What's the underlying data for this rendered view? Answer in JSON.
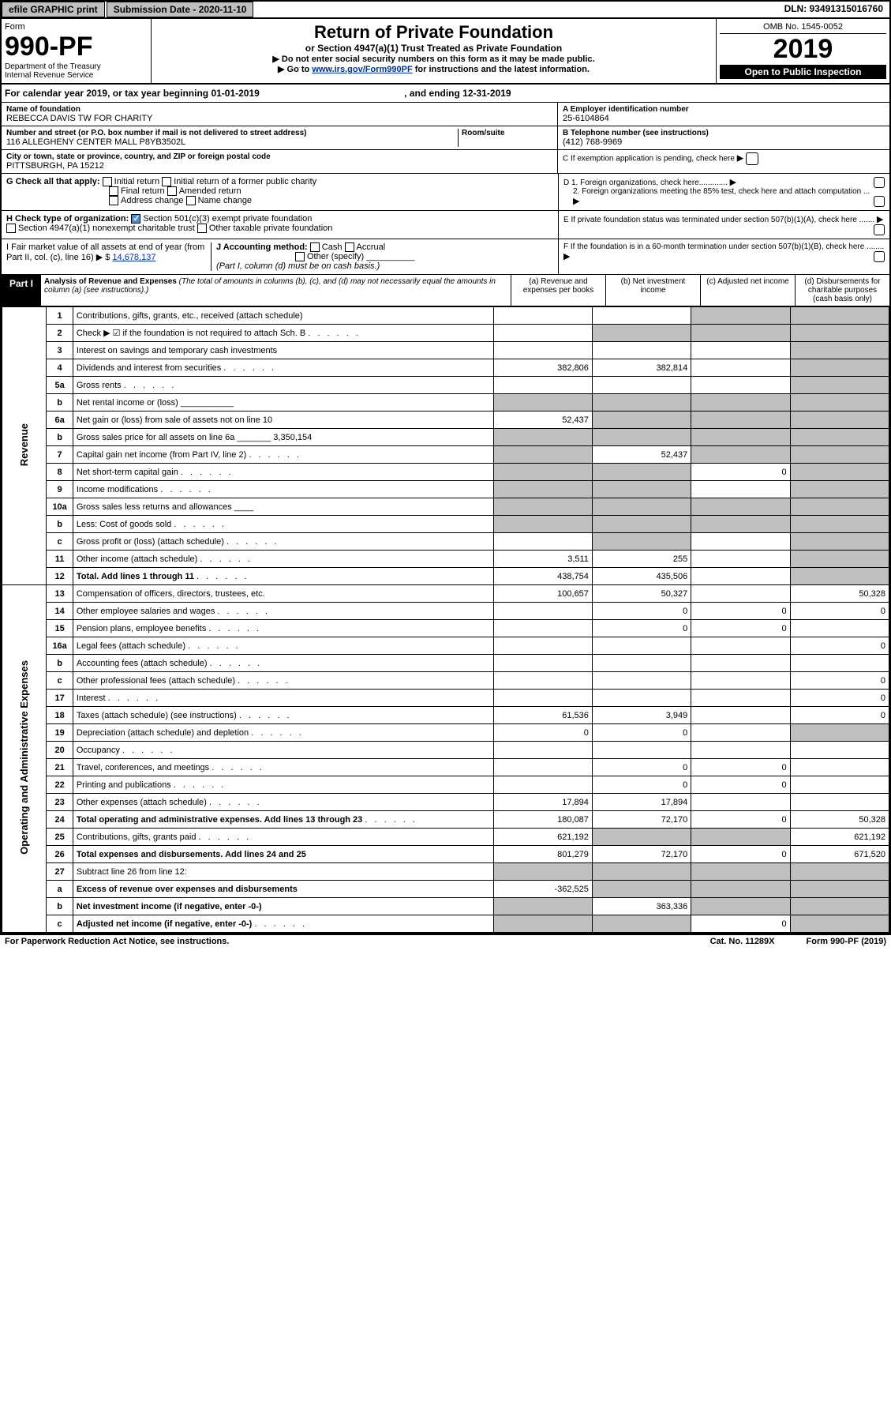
{
  "topbar": {
    "efile": "efile GRAPHIC print",
    "submission": "Submission Date - 2020-11-10",
    "dln": "DLN: 93491315016760"
  },
  "header": {
    "form_label": "Form",
    "form_name": "990-PF",
    "dept": "Department of the Treasury",
    "irs": "Internal Revenue Service",
    "title": "Return of Private Foundation",
    "subtitle": "or Section 4947(a)(1) Trust Treated as Private Foundation",
    "note1": "▶ Do not enter social security numbers on this form as it may be made public.",
    "note2_pre": "▶ Go to ",
    "note2_link": "www.irs.gov/Form990PF",
    "note2_post": " for instructions and the latest information.",
    "omb": "OMB No. 1545-0052",
    "year": "2019",
    "open": "Open to Public Inspection"
  },
  "calendar": {
    "text": "For calendar year 2019, or tax year beginning 01-01-2019",
    "ending": ", and ending 12-31-2019"
  },
  "identity": {
    "name_label": "Name of foundation",
    "name": "REBECCA DAVIS TW FOR CHARITY",
    "addr_label": "Number and street (or P.O. box number if mail is not delivered to street address)",
    "addr": "116 ALLEGHENY CENTER MALL P8YB3502L",
    "room_label": "Room/suite",
    "city_label": "City or town, state or province, country, and ZIP or foreign postal code",
    "city": "PITTSBURGH, PA  15212",
    "ein_label": "A Employer identification number",
    "ein": "25-6104864",
    "phone_label": "B Telephone number (see instructions)",
    "phone": "(412) 768-9969",
    "c_label": "C If exemption application is pending, check here",
    "d1": "D 1. Foreign organizations, check here.............",
    "d2": "2. Foreign organizations meeting the 85% test, check here and attach computation ...",
    "e": "E If private foundation status was terminated under section 507(b)(1)(A), check here .......",
    "f": "F If the foundation is in a 60-month termination under section 507(b)(1)(B), check here ........"
  },
  "checkG": {
    "label": "G Check all that apply:",
    "initial": "Initial return",
    "initial_former": "Initial return of a former public charity",
    "final": "Final return",
    "amended": "Amended return",
    "address": "Address change",
    "name": "Name change"
  },
  "checkH": {
    "label": "H Check type of organization:",
    "c3": "Section 501(c)(3) exempt private foundation",
    "trust": "Section 4947(a)(1) nonexempt charitable trust",
    "other": "Other taxable private foundation"
  },
  "sectionI": {
    "label": "I Fair market value of all assets at end of year (from Part II, col. (c), line 16) ▶ $",
    "value": "14,678,137"
  },
  "sectionJ": {
    "label": "J Accounting method:",
    "cash": "Cash",
    "accrual": "Accrual",
    "other": "Other (specify)",
    "note": "(Part I, column (d) must be on cash basis.)"
  },
  "partI": {
    "label": "Part I",
    "title": "Analysis of Revenue and Expenses",
    "title_note": "(The total of amounts in columns (b), (c), and (d) may not necessarily equal the amounts in column (a) (see instructions).)",
    "col_a": "(a) Revenue and expenses per books",
    "col_b": "(b) Net investment income",
    "col_c": "(c) Adjusted net income",
    "col_d": "(d) Disbursements for charitable purposes (cash basis only)"
  },
  "side_labels": {
    "revenue": "Revenue",
    "expenses": "Operating and Administrative Expenses"
  },
  "rows": [
    {
      "n": "1",
      "desc": "Contributions, gifts, grants, etc., received (attach schedule)",
      "a": "",
      "b": "",
      "c": "sh",
      "d": "sh"
    },
    {
      "n": "2",
      "desc": "Check ▶ ☑ if the foundation is not required to attach Sch. B",
      "a": "",
      "b": "sh",
      "c": "sh",
      "d": "sh",
      "dots": true
    },
    {
      "n": "3",
      "desc": "Interest on savings and temporary cash investments",
      "a": "",
      "b": "",
      "c": "",
      "d": "sh"
    },
    {
      "n": "4",
      "desc": "Dividends and interest from securities",
      "a": "382,806",
      "b": "382,814",
      "c": "",
      "d": "sh",
      "dots": true
    },
    {
      "n": "5a",
      "desc": "Gross rents",
      "a": "",
      "b": "",
      "c": "",
      "d": "sh",
      "dots": true
    },
    {
      "n": "b",
      "desc": "Net rental income or (loss)  ___________",
      "a": "sh",
      "b": "sh",
      "c": "sh",
      "d": "sh"
    },
    {
      "n": "6a",
      "desc": "Net gain or (loss) from sale of assets not on line 10",
      "a": "52,437",
      "b": "sh",
      "c": "sh",
      "d": "sh"
    },
    {
      "n": "b",
      "desc": "Gross sales price for all assets on line 6a _______ 3,350,154",
      "a": "sh",
      "b": "sh",
      "c": "sh",
      "d": "sh"
    },
    {
      "n": "7",
      "desc": "Capital gain net income (from Part IV, line 2)",
      "a": "sh",
      "b": "52,437",
      "c": "sh",
      "d": "sh",
      "dots": true
    },
    {
      "n": "8",
      "desc": "Net short-term capital gain",
      "a": "sh",
      "b": "sh",
      "c": "0",
      "d": "sh",
      "dots": true
    },
    {
      "n": "9",
      "desc": "Income modifications",
      "a": "sh",
      "b": "sh",
      "c": "",
      "d": "sh",
      "dots": true
    },
    {
      "n": "10a",
      "desc": "Gross sales less returns and allowances  ____",
      "a": "sh",
      "b": "sh",
      "c": "sh",
      "d": "sh"
    },
    {
      "n": "b",
      "desc": "Less: Cost of goods sold",
      "a": "sh",
      "b": "sh",
      "c": "sh",
      "d": "sh",
      "dots": true
    },
    {
      "n": "c",
      "desc": "Gross profit or (loss) (attach schedule)",
      "a": "",
      "b": "sh",
      "c": "",
      "d": "sh",
      "dots": true
    },
    {
      "n": "11",
      "desc": "Other income (attach schedule)",
      "a": "3,511",
      "b": "255",
      "c": "",
      "d": "sh",
      "dots": true
    },
    {
      "n": "12",
      "desc": "Total. Add lines 1 through 11",
      "a": "438,754",
      "b": "435,506",
      "c": "",
      "d": "sh",
      "bold": true,
      "dots": true
    },
    {
      "n": "13",
      "desc": "Compensation of officers, directors, trustees, etc.",
      "a": "100,657",
      "b": "50,327",
      "c": "",
      "d": "50,328"
    },
    {
      "n": "14",
      "desc": "Other employee salaries and wages",
      "a": "",
      "b": "0",
      "c": "0",
      "d": "0",
      "dots": true
    },
    {
      "n": "15",
      "desc": "Pension plans, employee benefits",
      "a": "",
      "b": "0",
      "c": "0",
      "d": "",
      "dots": true
    },
    {
      "n": "16a",
      "desc": "Legal fees (attach schedule)",
      "a": "",
      "b": "",
      "c": "",
      "d": "0",
      "dots": true
    },
    {
      "n": "b",
      "desc": "Accounting fees (attach schedule)",
      "a": "",
      "b": "",
      "c": "",
      "d": "",
      "dots": true
    },
    {
      "n": "c",
      "desc": "Other professional fees (attach schedule)",
      "a": "",
      "b": "",
      "c": "",
      "d": "0",
      "dots": true
    },
    {
      "n": "17",
      "desc": "Interest",
      "a": "",
      "b": "",
      "c": "",
      "d": "0",
      "dots": true
    },
    {
      "n": "18",
      "desc": "Taxes (attach schedule) (see instructions)",
      "a": "61,536",
      "b": "3,949",
      "c": "",
      "d": "0",
      "dots": true
    },
    {
      "n": "19",
      "desc": "Depreciation (attach schedule) and depletion",
      "a": "0",
      "b": "0",
      "c": "",
      "d": "sh",
      "dots": true
    },
    {
      "n": "20",
      "desc": "Occupancy",
      "a": "",
      "b": "",
      "c": "",
      "d": "",
      "dots": true
    },
    {
      "n": "21",
      "desc": "Travel, conferences, and meetings",
      "a": "",
      "b": "0",
      "c": "0",
      "d": "",
      "dots": true
    },
    {
      "n": "22",
      "desc": "Printing and publications",
      "a": "",
      "b": "0",
      "c": "0",
      "d": "",
      "dots": true
    },
    {
      "n": "23",
      "desc": "Other expenses (attach schedule)",
      "a": "17,894",
      "b": "17,894",
      "c": "",
      "d": "",
      "dots": true
    },
    {
      "n": "24",
      "desc": "Total operating and administrative expenses. Add lines 13 through 23",
      "a": "180,087",
      "b": "72,170",
      "c": "0",
      "d": "50,328",
      "bold": true,
      "dots": true
    },
    {
      "n": "25",
      "desc": "Contributions, gifts, grants paid",
      "a": "621,192",
      "b": "sh",
      "c": "sh",
      "d": "621,192",
      "dots": true
    },
    {
      "n": "26",
      "desc": "Total expenses and disbursements. Add lines 24 and 25",
      "a": "801,279",
      "b": "72,170",
      "c": "0",
      "d": "671,520",
      "bold": true
    },
    {
      "n": "27",
      "desc": "Subtract line 26 from line 12:",
      "a": "sh",
      "b": "sh",
      "c": "sh",
      "d": "sh"
    },
    {
      "n": "a",
      "desc": "Excess of revenue over expenses and disbursements",
      "a": "-362,525",
      "b": "sh",
      "c": "sh",
      "d": "sh",
      "bold": true
    },
    {
      "n": "b",
      "desc": "Net investment income (if negative, enter -0-)",
      "a": "sh",
      "b": "363,336",
      "c": "sh",
      "d": "sh",
      "bold": true
    },
    {
      "n": "c",
      "desc": "Adjusted net income (if negative, enter -0-)",
      "a": "sh",
      "b": "sh",
      "c": "0",
      "d": "sh",
      "bold": true,
      "dots": true
    }
  ],
  "footer": {
    "left": "For Paperwork Reduction Act Notice, see instructions.",
    "mid": "Cat. No. 11289X",
    "right": "Form 990-PF (2019)"
  }
}
